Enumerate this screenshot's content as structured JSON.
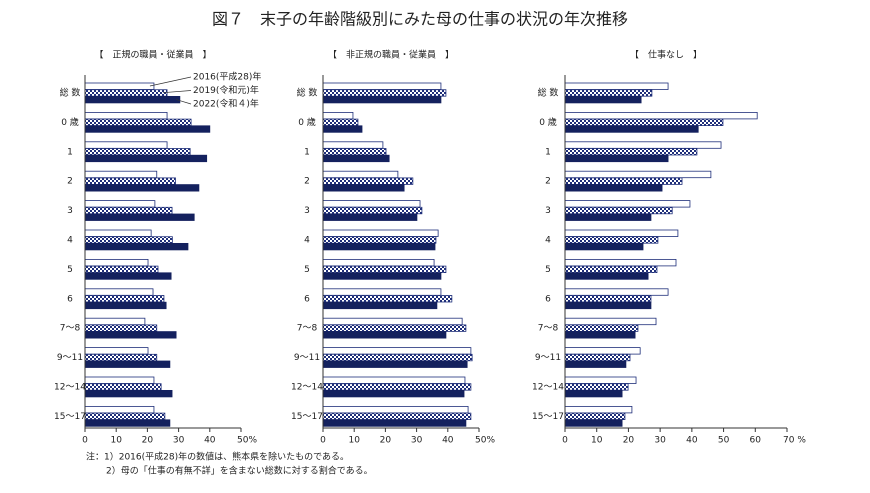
{
  "title": "図７　末子の年齢階級別にみた母の仕事の状況の年次推移",
  "notes": [
    "注：1）2016(平成28)年の数値は、熊本県を除いたものである。",
    "2）母の「仕事の有無不詳」を含まない総数に対する割合である。"
  ],
  "chart_data": [
    {
      "type": "hbar",
      "title": "【　正規の職員・従業員　】",
      "categories": [
        "総 数",
        "0 歳",
        "1",
        "2",
        "3",
        "4",
        "5",
        "6",
        "7～8",
        "9～11",
        "12～14",
        "15～17"
      ],
      "series": [
        {
          "name": "2016(平成28)年",
          "color": "#1f2f7a",
          "fill_style": "outline",
          "values": [
            22.1,
            26.3,
            26.3,
            23,
            22.4,
            21.2,
            20.2,
            21.8,
            19.2,
            20.2,
            22.1,
            22.1
          ]
        },
        {
          "name": "2019(令和元)年",
          "color": "#1f2f7a",
          "fill_style": "checker",
          "values": [
            26.3,
            34,
            33.7,
            29,
            27.9,
            28,
            23.4,
            25.3,
            23,
            23,
            24.4,
            25.6
          ]
        },
        {
          "name": "2022(令和４)年",
          "color": "#14215e",
          "fill_style": "solid",
          "values": [
            30.4,
            40,
            39,
            36.5,
            35,
            33,
            27.6,
            26,
            29.2,
            27.2,
            27.9,
            27.2
          ]
        }
      ],
      "xlim": [
        0,
        50
      ],
      "xticks": [
        0,
        10,
        20,
        30,
        40,
        {
          "value": 50,
          "label": "50%"
        }
      ]
    },
    {
      "type": "hbar",
      "title": "【　非正規の職員・従業員　】",
      "categories": [
        "総 数",
        "0 歳",
        "1",
        "2",
        "3",
        "4",
        "5",
        "6",
        "7～8",
        "9～11",
        "12～14",
        "15～17"
      ],
      "series": [
        {
          "color": "#1f2f7a",
          "fill_style": "outline",
          "values": [
            37.8,
            9.6,
            19.2,
            24,
            31.1,
            36.9,
            35.6,
            37.8,
            44.6,
            47.4,
            45.5,
            46.5
          ]
        },
        {
          "color": "#1f2f7a",
          "fill_style": "checker",
          "values": [
            39.4,
            11.2,
            20.2,
            28.8,
            31.7,
            36.2,
            39.4,
            41.3,
            45.8,
            47.8,
            47.4,
            47.4
          ]
        },
        {
          "color": "#14215e",
          "fill_style": "solid",
          "values": [
            37.8,
            12.5,
            21.2,
            26,
            30.1,
            35.9,
            37.8,
            36.5,
            39.4,
            46.2,
            45.2,
            45.8
          ]
        }
      ],
      "xlim": [
        0,
        50
      ],
      "xticks": [
        0,
        10,
        20,
        30,
        40,
        {
          "value": 50,
          "label": "50%"
        }
      ]
    },
    {
      "type": "hbar",
      "title": "【　仕事なし　】",
      "categories": [
        "総 数",
        "0 歳",
        "1",
        "2",
        "3",
        "4",
        "5",
        "6",
        "7～8",
        "9～11",
        "12～14",
        "15～17"
      ],
      "series": [
        {
          "color": "#1f2f7a",
          "fill_style": "outline",
          "values": [
            32.5,
            60.6,
            49.2,
            46,
            39.4,
            35.6,
            35,
            32.5,
            28.7,
            23.7,
            22.4,
            21.1
          ]
        },
        {
          "color": "#1f2f7a",
          "fill_style": "checker",
          "values": [
            27.4,
            49.8,
            41.6,
            36.9,
            33.8,
            29.3,
            29,
            27.1,
            23,
            20.5,
            19.9,
            18.9
          ]
        },
        {
          "color": "#14215e",
          "fill_style": "solid",
          "values": [
            24,
            42,
            32.5,
            30.6,
            27.1,
            24.6,
            26.2,
            27.1,
            22.1,
            19.2,
            18,
            18
          ]
        }
      ],
      "xlim": [
        0,
        70
      ],
      "xticks": [
        0,
        10,
        20,
        30,
        40,
        50,
        60,
        {
          "value": 70,
          "label": "70 %"
        }
      ]
    }
  ]
}
